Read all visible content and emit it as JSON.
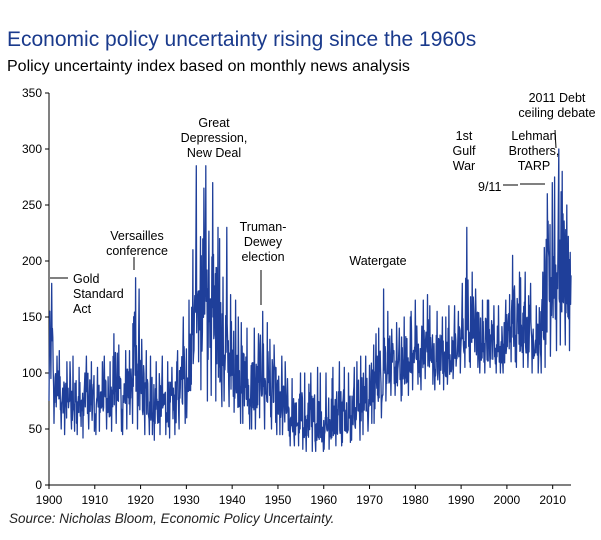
{
  "chart_data": {
    "type": "line",
    "title": "Economic policy uncertainty rising since the 1960s",
    "subtitle": "Policy uncertainty index based on monthly news analysis",
    "source": "Source: Nicholas Bloom, Economic Policy Uncertainty.",
    "xlabel": "",
    "ylabel": "",
    "xlim": [
      1900,
      2014
    ],
    "ylim": [
      0,
      350
    ],
    "x_ticks": [
      1900,
      1910,
      1920,
      1930,
      1940,
      1950,
      1960,
      1970,
      1980,
      1990,
      2000,
      2010
    ],
    "y_ticks": [
      0,
      50,
      100,
      150,
      200,
      250,
      300,
      350
    ],
    "grid": false,
    "color": "#1f3f9a",
    "series": [
      {
        "name": "Policy uncertainty index",
        "x": [
          1900,
          1901,
          1902,
          1903,
          1904,
          1905,
          1906,
          1907,
          1908,
          1909,
          1910,
          1911,
          1912,
          1913,
          1914,
          1915,
          1916,
          1917,
          1918,
          1919,
          1920,
          1921,
          1922,
          1923,
          1924,
          1925,
          1926,
          1927,
          1928,
          1929,
          1930,
          1931,
          1932,
          1933,
          1934,
          1935,
          1936,
          1937,
          1938,
          1939,
          1940,
          1941,
          1942,
          1943,
          1944,
          1945,
          1946,
          1947,
          1948,
          1949,
          1950,
          1951,
          1952,
          1953,
          1954,
          1955,
          1956,
          1957,
          1958,
          1959,
          1960,
          1961,
          1962,
          1963,
          1964,
          1965,
          1966,
          1967,
          1968,
          1969,
          1970,
          1971,
          1972,
          1973,
          1974,
          1975,
          1976,
          1977,
          1978,
          1979,
          1980,
          1981,
          1982,
          1983,
          1984,
          1985,
          1986,
          1987,
          1988,
          1989,
          1990,
          1991,
          1992,
          1993,
          1994,
          1995,
          1996,
          1997,
          1998,
          1999,
          2000,
          2001,
          2002,
          2003,
          2004,
          2005,
          2006,
          2007,
          2008,
          2009,
          2010,
          2011,
          2012,
          2013,
          2014
        ],
        "min": [
          75,
          55,
          50,
          45,
          50,
          48,
          45,
          42,
          50,
          48,
          45,
          48,
          50,
          48,
          55,
          48,
          45,
          50,
          55,
          50,
          45,
          45,
          45,
          40,
          45,
          45,
          42,
          45,
          50,
          55,
          60,
          90,
          110,
          85,
          75,
          80,
          75,
          70,
          75,
          70,
          65,
          55,
          55,
          50,
          50,
          50,
          60,
          50,
          50,
          45,
          45,
          45,
          35,
          35,
          35,
          32,
          30,
          30,
          30,
          30,
          32,
          32,
          35,
          35,
          38,
          38,
          40,
          40,
          45,
          48,
          55,
          55,
          60,
          75,
          80,
          80,
          75,
          80,
          80,
          85,
          90,
          85,
          95,
          90,
          85,
          90,
          85,
          90,
          95,
          100,
          105,
          110,
          105,
          105,
          100,
          100,
          105,
          100,
          100,
          100,
          110,
          110,
          105,
          105,
          105,
          100,
          100,
          100,
          105,
          115,
          120,
          125,
          125,
          120,
          130
        ],
        "max": [
          180,
          115,
          120,
          110,
          110,
          115,
          105,
          100,
          115,
          110,
          105,
          110,
          115,
          110,
          135,
          125,
          120,
          120,
          185,
          175,
          130,
          120,
          115,
          110,
          115,
          110,
          105,
          110,
          120,
          150,
          165,
          210,
          285,
          265,
          285,
          270,
          230,
          220,
          230,
          170,
          165,
          150,
          145,
          140,
          140,
          135,
          155,
          145,
          130,
          125,
          115,
          110,
          95,
          95,
          100,
          100,
          90,
          100,
          105,
          100,
          100,
          95,
          105,
          110,
          105,
          100,
          105,
          110,
          115,
          115,
          125,
          135,
          140,
          175,
          155,
          145,
          140,
          150,
          150,
          155,
          165,
          165,
          170,
          160,
          155,
          150,
          150,
          160,
          160,
          155,
          180,
          230,
          190,
          175,
          165,
          165,
          165,
          160,
          160,
          165,
          170,
          205,
          190,
          185,
          190,
          180,
          160,
          190,
          260,
          270,
          275,
          300,
          280,
          250,
          240
        ],
        "mean": [
          110,
          85,
          80,
          75,
          78,
          75,
          72,
          70,
          80,
          75,
          70,
          75,
          78,
          75,
          90,
          85,
          80,
          82,
          100,
          95,
          80,
          75,
          75,
          70,
          72,
          72,
          70,
          72,
          80,
          100,
          110,
          140,
          180,
          165,
          170,
          160,
          140,
          120,
          120,
          110,
          100,
          95,
          90,
          85,
          85,
          80,
          95,
          85,
          80,
          75,
          70,
          65,
          55,
          55,
          58,
          55,
          50,
          55,
          55,
          52,
          55,
          55,
          60,
          62,
          65,
          62,
          68,
          70,
          75,
          78,
          85,
          90,
          95,
          110,
          110,
          105,
          100,
          105,
          105,
          110,
          115,
          115,
          120,
          115,
          110,
          115,
          110,
          115,
          120,
          120,
          130,
          140,
          135,
          130,
          125,
          125,
          125,
          120,
          120,
          125,
          130,
          145,
          140,
          140,
          140,
          135,
          130,
          135,
          150,
          180,
          180,
          195,
          190,
          170,
          165
        ]
      }
    ],
    "annotations": [
      {
        "id": "gold-standard-act",
        "lines": [
          "Gold",
          "Standard",
          "Act"
        ],
        "x": 1900.5,
        "value": 182
      },
      {
        "id": "versailles-conference",
        "lines": [
          "Versailles",
          "conference"
        ],
        "x": 1919.2,
        "value": 185
      },
      {
        "id": "great-depression-new-deal",
        "lines": [
          "Great",
          "Depression,",
          "New Deal"
        ],
        "x": 1933.3,
        "value": 287
      },
      {
        "id": "truman-dewey-election",
        "lines": [
          "Truman-",
          "Dewey",
          "election"
        ],
        "x": 1948.5,
        "value": 158
      },
      {
        "id": "watergate",
        "lines": [
          "Watergate"
        ],
        "x": 1973.8,
        "value": 176
      },
      {
        "id": "first-gulf-war",
        "lines": [
          "1st",
          "Gulf",
          "War"
        ],
        "x": 1990.7,
        "value": 231
      },
      {
        "id": "nine-eleven",
        "lines": [
          "9/11"
        ],
        "x": 2001.7,
        "value": 256
      },
      {
        "id": "lehman-brothers-tarp",
        "lines": [
          "Lehman",
          "Brothers,",
          "TARP"
        ],
        "x": 2008.8,
        "value": 252
      },
      {
        "id": "debt-ceiling-debate",
        "lines": [
          "2011 Debt",
          "ceiling debate"
        ],
        "x": 2011.6,
        "value": 300
      }
    ]
  }
}
